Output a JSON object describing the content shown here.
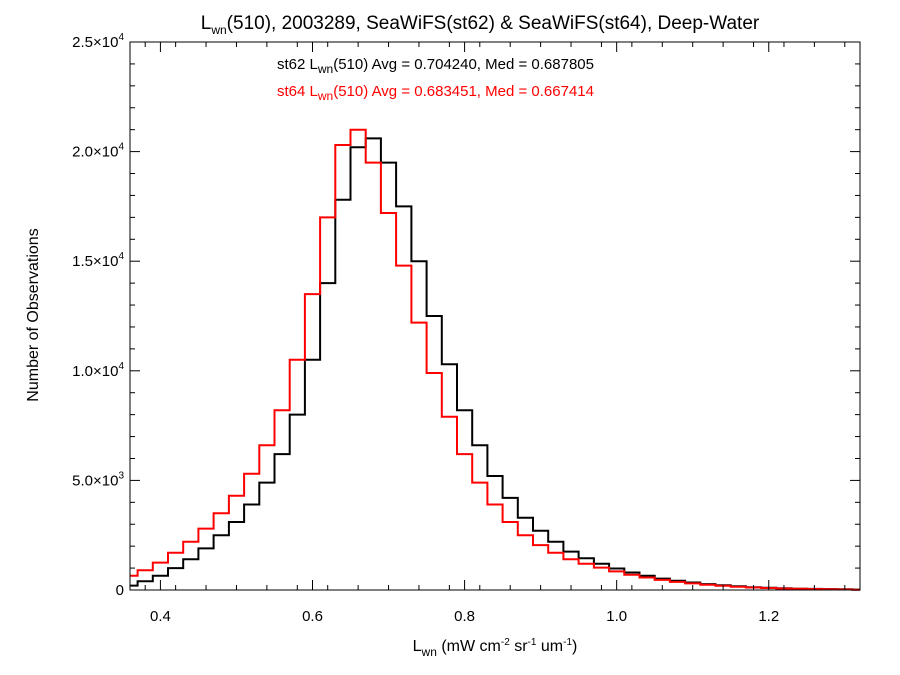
{
  "chart_data": {
    "type": "line",
    "title": {
      "prefix": "L",
      "sub": "wn",
      "suffix": "(510), 2003289, SeaWiFS(st62) & SeaWiFS(st64), Deep-Water"
    },
    "xlabel": {
      "prefix": "L",
      "sub": "wn",
      "parts": [
        {
          "t": " (mW cm",
          "sup": false
        },
        {
          "t": "-2",
          "sup": true
        },
        {
          "t": " sr",
          "sup": false
        },
        {
          "t": "-1",
          "sup": true
        },
        {
          "t": " um",
          "sup": false
        },
        {
          "t": "-1",
          "sup": true
        },
        {
          "t": ")",
          "sup": false
        }
      ]
    },
    "ylabel": "Number of Observations",
    "xlim": [
      0.36,
      1.32
    ],
    "ylim": [
      0,
      25000
    ],
    "x_ticks": [
      {
        "value": 0.4,
        "label": "0.4"
      },
      {
        "value": 0.6,
        "label": "0.6"
      },
      {
        "value": 0.8,
        "label": "0.8"
      },
      {
        "value": 1.0,
        "label": "1.0"
      },
      {
        "value": 1.2,
        "label": "1.2"
      }
    ],
    "y_ticks": [
      {
        "value": 0,
        "mant": "0",
        "exp": ""
      },
      {
        "value": 5000,
        "mant": "5.0×10",
        "exp": "3"
      },
      {
        "value": 10000,
        "mant": "1.0×10",
        "exp": "4"
      },
      {
        "value": 15000,
        "mant": "1.5×10",
        "exp": "4"
      },
      {
        "value": 20000,
        "mant": "2.0×10",
        "exp": "4"
      },
      {
        "value": 25000,
        "mant": "2.5×10",
        "exp": "4"
      }
    ],
    "grid": false,
    "series": [
      {
        "stat_prefix": "st62 L",
        "stat_sub": "wn",
        "stat_suffix": "(510) Avg = 0.704240, Med = 0.687805",
        "color": "#000000",
        "x": [
          0.36,
          0.38,
          0.4,
          0.42,
          0.44,
          0.46,
          0.48,
          0.5,
          0.52,
          0.54,
          0.56,
          0.58,
          0.6,
          0.62,
          0.64,
          0.66,
          0.68,
          0.7,
          0.72,
          0.74,
          0.76,
          0.78,
          0.8,
          0.82,
          0.84,
          0.86,
          0.88,
          0.9,
          0.92,
          0.94,
          0.96,
          0.98,
          1.0,
          1.02,
          1.04,
          1.06,
          1.08,
          1.1,
          1.12,
          1.14,
          1.16,
          1.18,
          1.2,
          1.22,
          1.24,
          1.26,
          1.28,
          1.3,
          1.32
        ],
        "y": [
          200,
          400,
          650,
          1000,
          1400,
          1900,
          2500,
          3100,
          3900,
          4900,
          6200,
          8000,
          10500,
          14000,
          17800,
          20200,
          20600,
          19500,
          17500,
          15000,
          12500,
          10300,
          8200,
          6600,
          5200,
          4200,
          3300,
          2700,
          2200,
          1750,
          1450,
          1200,
          980,
          800,
          650,
          520,
          420,
          340,
          270,
          220,
          170,
          130,
          100,
          80,
          60,
          50,
          40,
          30,
          20
        ]
      },
      {
        "stat_prefix": "st64 L",
        "stat_sub": "wn",
        "stat_suffix": "(510) Avg = 0.683451, Med = 0.667414",
        "color": "#ff0000",
        "x": [
          0.36,
          0.38,
          0.4,
          0.42,
          0.44,
          0.46,
          0.48,
          0.5,
          0.52,
          0.54,
          0.56,
          0.58,
          0.6,
          0.62,
          0.64,
          0.66,
          0.68,
          0.7,
          0.72,
          0.74,
          0.76,
          0.78,
          0.8,
          0.82,
          0.84,
          0.86,
          0.88,
          0.9,
          0.92,
          0.94,
          0.96,
          0.98,
          1.0,
          1.02,
          1.04,
          1.06,
          1.08,
          1.1,
          1.12,
          1.14,
          1.16,
          1.18,
          1.2,
          1.22,
          1.24,
          1.26,
          1.28,
          1.3,
          1.32
        ],
        "y": [
          650,
          900,
          1250,
          1700,
          2200,
          2800,
          3500,
          4300,
          5300,
          6600,
          8200,
          10500,
          13500,
          17000,
          20300,
          21000,
          19500,
          17200,
          14800,
          12200,
          9900,
          7900,
          6200,
          4900,
          3900,
          3100,
          2500,
          2050,
          1700,
          1400,
          1200,
          1020,
          850,
          700,
          570,
          460,
          370,
          300,
          240,
          190,
          150,
          115,
          90,
          70,
          55,
          45,
          35,
          25,
          15
        ]
      }
    ]
  }
}
